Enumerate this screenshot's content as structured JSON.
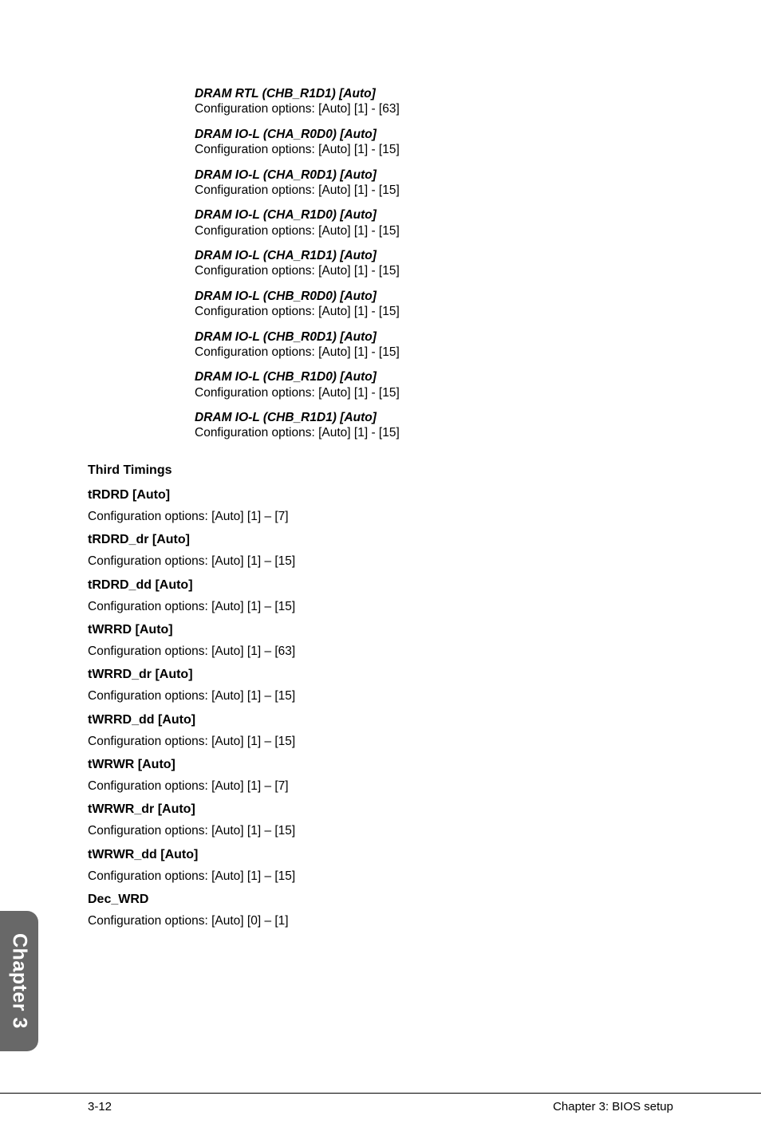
{
  "dram_items": [
    {
      "title": "DRAM RTL (CHB_R1D1) [Auto]",
      "desc": "Configuration options: [Auto] [1] - [63]"
    },
    {
      "title": "DRAM IO-L (CHA_R0D0) [Auto]",
      "desc": "Configuration options: [Auto] [1] - [15]"
    },
    {
      "title": "DRAM IO-L (CHA_R0D1) [Auto]",
      "desc": "Configuration options: [Auto] [1] - [15]"
    },
    {
      "title": "DRAM IO-L (CHA_R1D0) [Auto]",
      "desc": "Configuration options: [Auto] [1] - [15]"
    },
    {
      "title": "DRAM IO-L (CHA_R1D1) [Auto]",
      "desc": "Configuration options: [Auto] [1] - [15]"
    },
    {
      "title": "DRAM IO-L (CHB_R0D0) [Auto]",
      "desc": "Configuration options: [Auto] [1] - [15]"
    },
    {
      "title": "DRAM IO-L (CHB_R0D1) [Auto]",
      "desc": "Configuration options: [Auto] [1] - [15]"
    },
    {
      "title": "DRAM IO-L (CHB_R1D0) [Auto]",
      "desc": "Configuration options: [Auto] [1] - [15]"
    },
    {
      "title": "DRAM IO-L (CHB_R1D1) [Auto]",
      "desc": "Configuration options: [Auto] [1] - [15]"
    }
  ],
  "third_timings_heading": "Third Timings",
  "timing_items": [
    {
      "title": "tRDRD [Auto]",
      "desc": "Configuration options: [Auto] [1] – [7]"
    },
    {
      "title": "tRDRD_dr [Auto]",
      "desc": "Configuration options: [Auto] [1] – [15]"
    },
    {
      "title": "tRDRD_dd [Auto]",
      "desc": "Configuration options: [Auto] [1] – [15]"
    },
    {
      "title": "tWRRD [Auto]",
      "desc": "Configuration options: [Auto] [1] – [63]"
    },
    {
      "title": "tWRRD_dr [Auto]",
      "desc": "Configuration options: [Auto] [1] – [15]"
    },
    {
      "title": "tWRRD_dd [Auto]",
      "desc": "Configuration options: [Auto] [1] – [15]"
    },
    {
      "title": "tWRWR [Auto]",
      "desc": "Configuration options: [Auto] [1] – [7]"
    },
    {
      "title": "tWRWR_dr [Auto]",
      "desc": "Configuration options: [Auto] [1] – [15]"
    },
    {
      "title": "tWRWR_dd [Auto]",
      "desc": "Configuration options: [Auto] [1] – [15]"
    },
    {
      "title": "Dec_WRD",
      "desc": "Configuration options: [Auto] [0] – [1]"
    }
  ],
  "side_tab": "Chapter 3",
  "footer": {
    "left": "3-12",
    "right": "Chapter 3: BIOS setup"
  },
  "colors": {
    "tab_bg": "#686868",
    "tab_text": "#ffffff",
    "page_bg": "#ffffff",
    "text": "#000000",
    "rule": "#000000"
  }
}
